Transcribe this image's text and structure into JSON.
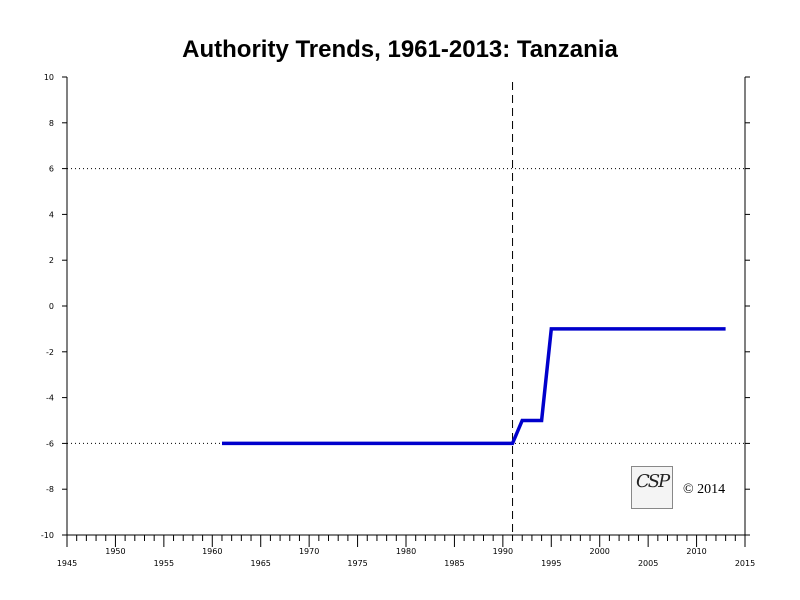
{
  "chart_data": {
    "type": "line",
    "title": "Authority Trends, 1961-2013: Tanzania",
    "xlim": [
      1945,
      2015
    ],
    "ylim": [
      -10,
      10
    ],
    "x_ticks_upper": [
      1950,
      1960,
      1970,
      1980,
      1990,
      2000,
      2010
    ],
    "x_ticks_lower": [
      1945,
      1955,
      1965,
      1975,
      1985,
      1995,
      2005,
      2015
    ],
    "y_ticks": [
      10,
      8,
      6,
      4,
      2,
      0,
      -2,
      -4,
      -6,
      -8,
      -10
    ],
    "reference_lines_y": [
      6,
      -6
    ],
    "vertical_marker_x": 1991,
    "series": [
      {
        "color": "#0000cc",
        "points": [
          [
            1961,
            -6
          ],
          [
            1991,
            -6
          ],
          [
            1992,
            -5
          ],
          [
            1994,
            -5
          ],
          [
            1995,
            -1
          ],
          [
            2013,
            -1
          ]
        ]
      }
    ],
    "grid": false
  },
  "copyright": "© 2014",
  "logo_text": "CSP",
  "colors": {
    "series": "#0000cc",
    "axis": "#000000"
  }
}
